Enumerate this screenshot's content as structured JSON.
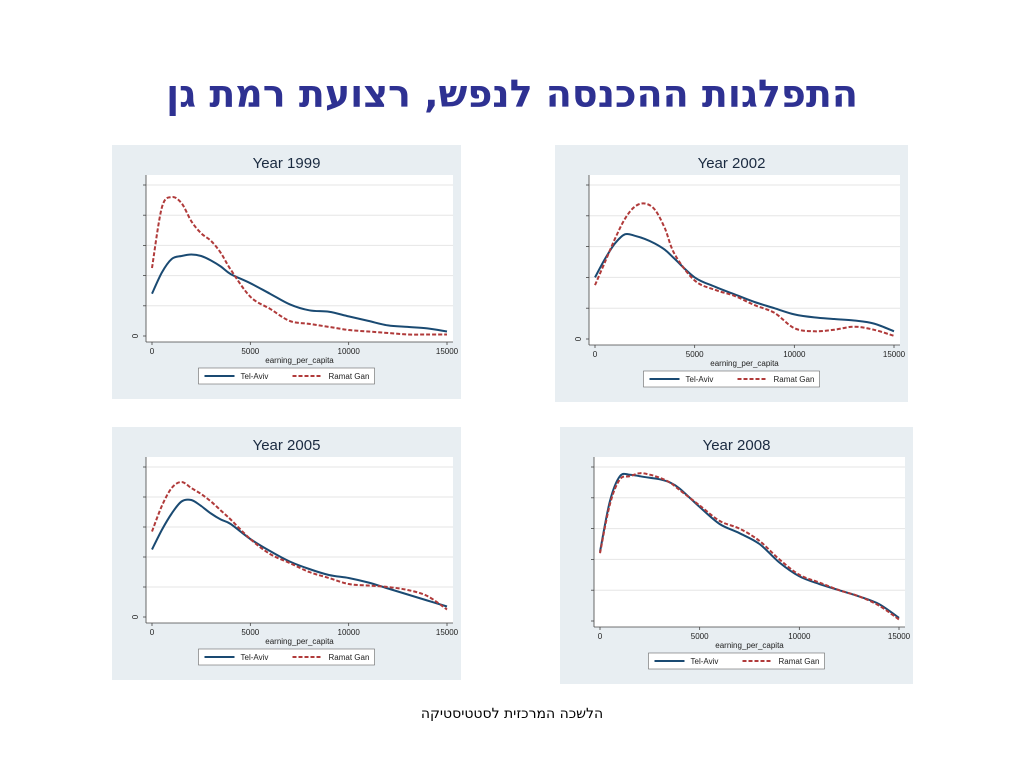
{
  "slide": {
    "title": "התפלגות ההכנסה לנפש, רצועת רמת גן",
    "footer": "הלשכה המרכזית לסטטיסטיקה"
  },
  "colors": {
    "tel_aviv": "#1a4a72",
    "ramat_gan": "#b03a3a",
    "panel_bg": "#e8eef2",
    "title": "#2e3192"
  },
  "chart_data": [
    {
      "type": "line",
      "title": "Year 1999",
      "xlabel": "earning_per_capita",
      "ylabel": "",
      "xlim": [
        0,
        15000
      ],
      "ylim": [
        0,
        1
      ],
      "x_ticks": [
        0,
        5000,
        10000,
        15000
      ],
      "y_tick_labels": [
        "0"
      ],
      "grid": true,
      "legend_position": "bottom",
      "series": [
        {
          "name": "Tel-Aviv",
          "style": "solid",
          "x": [
            0,
            500,
            1000,
            1500,
            2000,
            2500,
            3000,
            3500,
            4000,
            5000,
            6000,
            7000,
            8000,
            9000,
            10000,
            11000,
            12000,
            13000,
            14000,
            15000
          ],
          "y": [
            0.28,
            0.42,
            0.51,
            0.53,
            0.54,
            0.53,
            0.5,
            0.46,
            0.41,
            0.35,
            0.28,
            0.21,
            0.17,
            0.16,
            0.13,
            0.1,
            0.07,
            0.06,
            0.05,
            0.03
          ]
        },
        {
          "name": "Ramat Gan",
          "style": "dashed",
          "x": [
            0,
            500,
            1000,
            1500,
            2000,
            2500,
            3000,
            3500,
            4000,
            5000,
            6000,
            7000,
            8000,
            9000,
            10000,
            11000,
            12000,
            13000,
            14000,
            15000
          ],
          "y": [
            0.45,
            0.85,
            0.92,
            0.88,
            0.76,
            0.68,
            0.63,
            0.55,
            0.44,
            0.26,
            0.18,
            0.1,
            0.08,
            0.06,
            0.04,
            0.03,
            0.02,
            0.01,
            0.01,
            0.01
          ]
        }
      ]
    },
    {
      "type": "line",
      "title": "Year 2002",
      "xlabel": "earning_per_capita",
      "ylabel": "",
      "xlim": [
        0,
        15000
      ],
      "ylim": [
        0,
        1
      ],
      "x_ticks": [
        0,
        5000,
        10000,
        15000
      ],
      "y_tick_labels": [
        "0"
      ],
      "grid": true,
      "legend_position": "bottom",
      "series": [
        {
          "name": "Tel-Aviv",
          "style": "solid",
          "x": [
            0,
            500,
            1000,
            1500,
            2000,
            2500,
            3000,
            3500,
            4000,
            5000,
            6000,
            7000,
            8000,
            9000,
            10000,
            11000,
            12000,
            13000,
            14000,
            15000
          ],
          "y": [
            0.4,
            0.52,
            0.62,
            0.68,
            0.67,
            0.65,
            0.62,
            0.58,
            0.52,
            0.4,
            0.34,
            0.29,
            0.24,
            0.2,
            0.16,
            0.14,
            0.13,
            0.12,
            0.1,
            0.05
          ]
        },
        {
          "name": "Ramat Gan",
          "style": "dashed",
          "x": [
            0,
            500,
            1000,
            1500,
            2000,
            2500,
            3000,
            3500,
            4000,
            5000,
            6000,
            7000,
            8000,
            9000,
            10000,
            11000,
            12000,
            13000,
            14000,
            15000
          ],
          "y": [
            0.35,
            0.5,
            0.65,
            0.78,
            0.86,
            0.88,
            0.84,
            0.72,
            0.55,
            0.38,
            0.32,
            0.28,
            0.22,
            0.17,
            0.07,
            0.05,
            0.06,
            0.08,
            0.06,
            0.02
          ]
        }
      ]
    },
    {
      "type": "line",
      "title": "Year 2005",
      "xlabel": "earning_per_capita",
      "ylabel": "",
      "xlim": [
        0,
        15000
      ],
      "ylim": [
        0,
        1
      ],
      "x_ticks": [
        0,
        5000,
        10000,
        15000
      ],
      "y_tick_labels": [
        "0"
      ],
      "grid": true,
      "legend_position": "bottom",
      "series": [
        {
          "name": "Tel-Aviv",
          "style": "solid",
          "x": [
            0,
            500,
            1000,
            1500,
            2000,
            2500,
            3000,
            3500,
            4000,
            5000,
            6000,
            7000,
            8000,
            9000,
            10000,
            11000,
            12000,
            13000,
            14000,
            15000
          ],
          "y": [
            0.45,
            0.58,
            0.69,
            0.77,
            0.78,
            0.74,
            0.69,
            0.65,
            0.62,
            0.52,
            0.44,
            0.37,
            0.32,
            0.28,
            0.26,
            0.23,
            0.19,
            0.15,
            0.11,
            0.07
          ]
        },
        {
          "name": "Ramat Gan",
          "style": "dashed",
          "x": [
            0,
            500,
            1000,
            1500,
            2000,
            2500,
            3000,
            3500,
            4000,
            5000,
            6000,
            7000,
            8000,
            9000,
            10000,
            11000,
            12000,
            13000,
            14000,
            15000
          ],
          "y": [
            0.57,
            0.74,
            0.86,
            0.9,
            0.86,
            0.82,
            0.77,
            0.71,
            0.65,
            0.52,
            0.42,
            0.36,
            0.3,
            0.26,
            0.22,
            0.21,
            0.2,
            0.18,
            0.14,
            0.05
          ]
        }
      ]
    },
    {
      "type": "line",
      "title": "Year 2008",
      "xlabel": "earning_per_capita",
      "ylabel": "",
      "xlim": [
        0,
        15000
      ],
      "ylim": [
        0,
        1
      ],
      "x_ticks": [
        0,
        5000,
        10000,
        15000
      ],
      "y_tick_labels": [],
      "grid": true,
      "legend_position": "bottom",
      "series": [
        {
          "name": "Tel-Aviv",
          "style": "solid",
          "x": [
            0,
            500,
            1000,
            1500,
            2000,
            2500,
            3000,
            3500,
            4000,
            5000,
            6000,
            7000,
            8000,
            9000,
            10000,
            11000,
            12000,
            13000,
            14000,
            15000
          ],
          "y": [
            0.45,
            0.78,
            0.94,
            0.95,
            0.94,
            0.93,
            0.92,
            0.9,
            0.86,
            0.74,
            0.63,
            0.57,
            0.5,
            0.38,
            0.29,
            0.24,
            0.2,
            0.16,
            0.11,
            0.02
          ]
        },
        {
          "name": "Ramat Gan",
          "style": "dashed",
          "x": [
            0,
            500,
            1000,
            1500,
            2000,
            2500,
            3000,
            3500,
            4000,
            5000,
            6000,
            7000,
            8000,
            9000,
            10000,
            11000,
            12000,
            13000,
            14000,
            15000
          ],
          "y": [
            0.44,
            0.76,
            0.92,
            0.94,
            0.96,
            0.95,
            0.93,
            0.9,
            0.85,
            0.75,
            0.65,
            0.6,
            0.52,
            0.4,
            0.3,
            0.25,
            0.2,
            0.16,
            0.1,
            0.01
          ]
        }
      ]
    }
  ]
}
